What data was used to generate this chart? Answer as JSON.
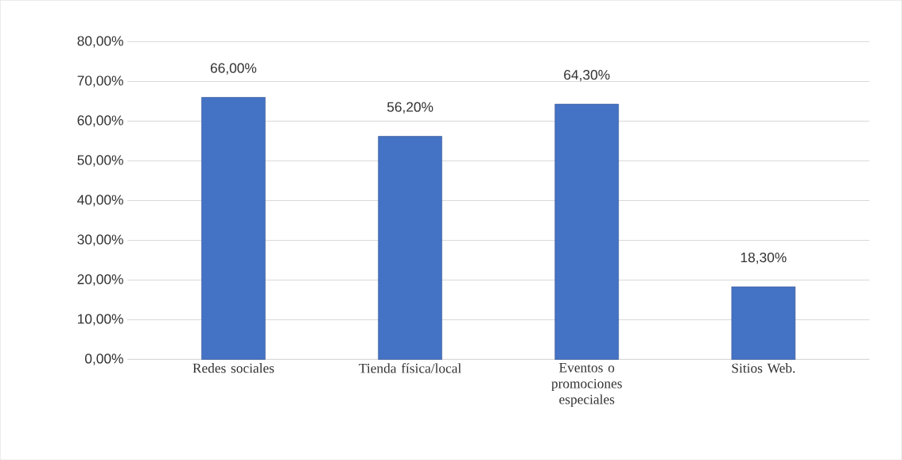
{
  "chart_data": {
    "type": "bar",
    "categories": [
      "Redes sociales",
      "Tienda física/local",
      "Eventos o promociones especiales",
      "Sitios Web."
    ],
    "values": [
      66.0,
      56.2,
      64.3,
      18.3
    ],
    "value_labels": [
      "66,00%",
      "56,20%",
      "64,30%",
      "18,30%"
    ],
    "color": "#4472c4",
    "ylim": [
      0,
      80
    ],
    "yticks": [
      {
        "value": 0,
        "label": "0,00%"
      },
      {
        "value": 10,
        "label": "10,00%"
      },
      {
        "value": 20,
        "label": "20,00%"
      },
      {
        "value": 30,
        "label": "30,00%"
      },
      {
        "value": 40,
        "label": "40,00%"
      },
      {
        "value": 50,
        "label": "50,00%"
      },
      {
        "value": 60,
        "label": "60,00%"
      },
      {
        "value": 70,
        "label": "70,00%"
      },
      {
        "value": 80,
        "label": "80,00%"
      }
    ],
    "grid": "y"
  }
}
